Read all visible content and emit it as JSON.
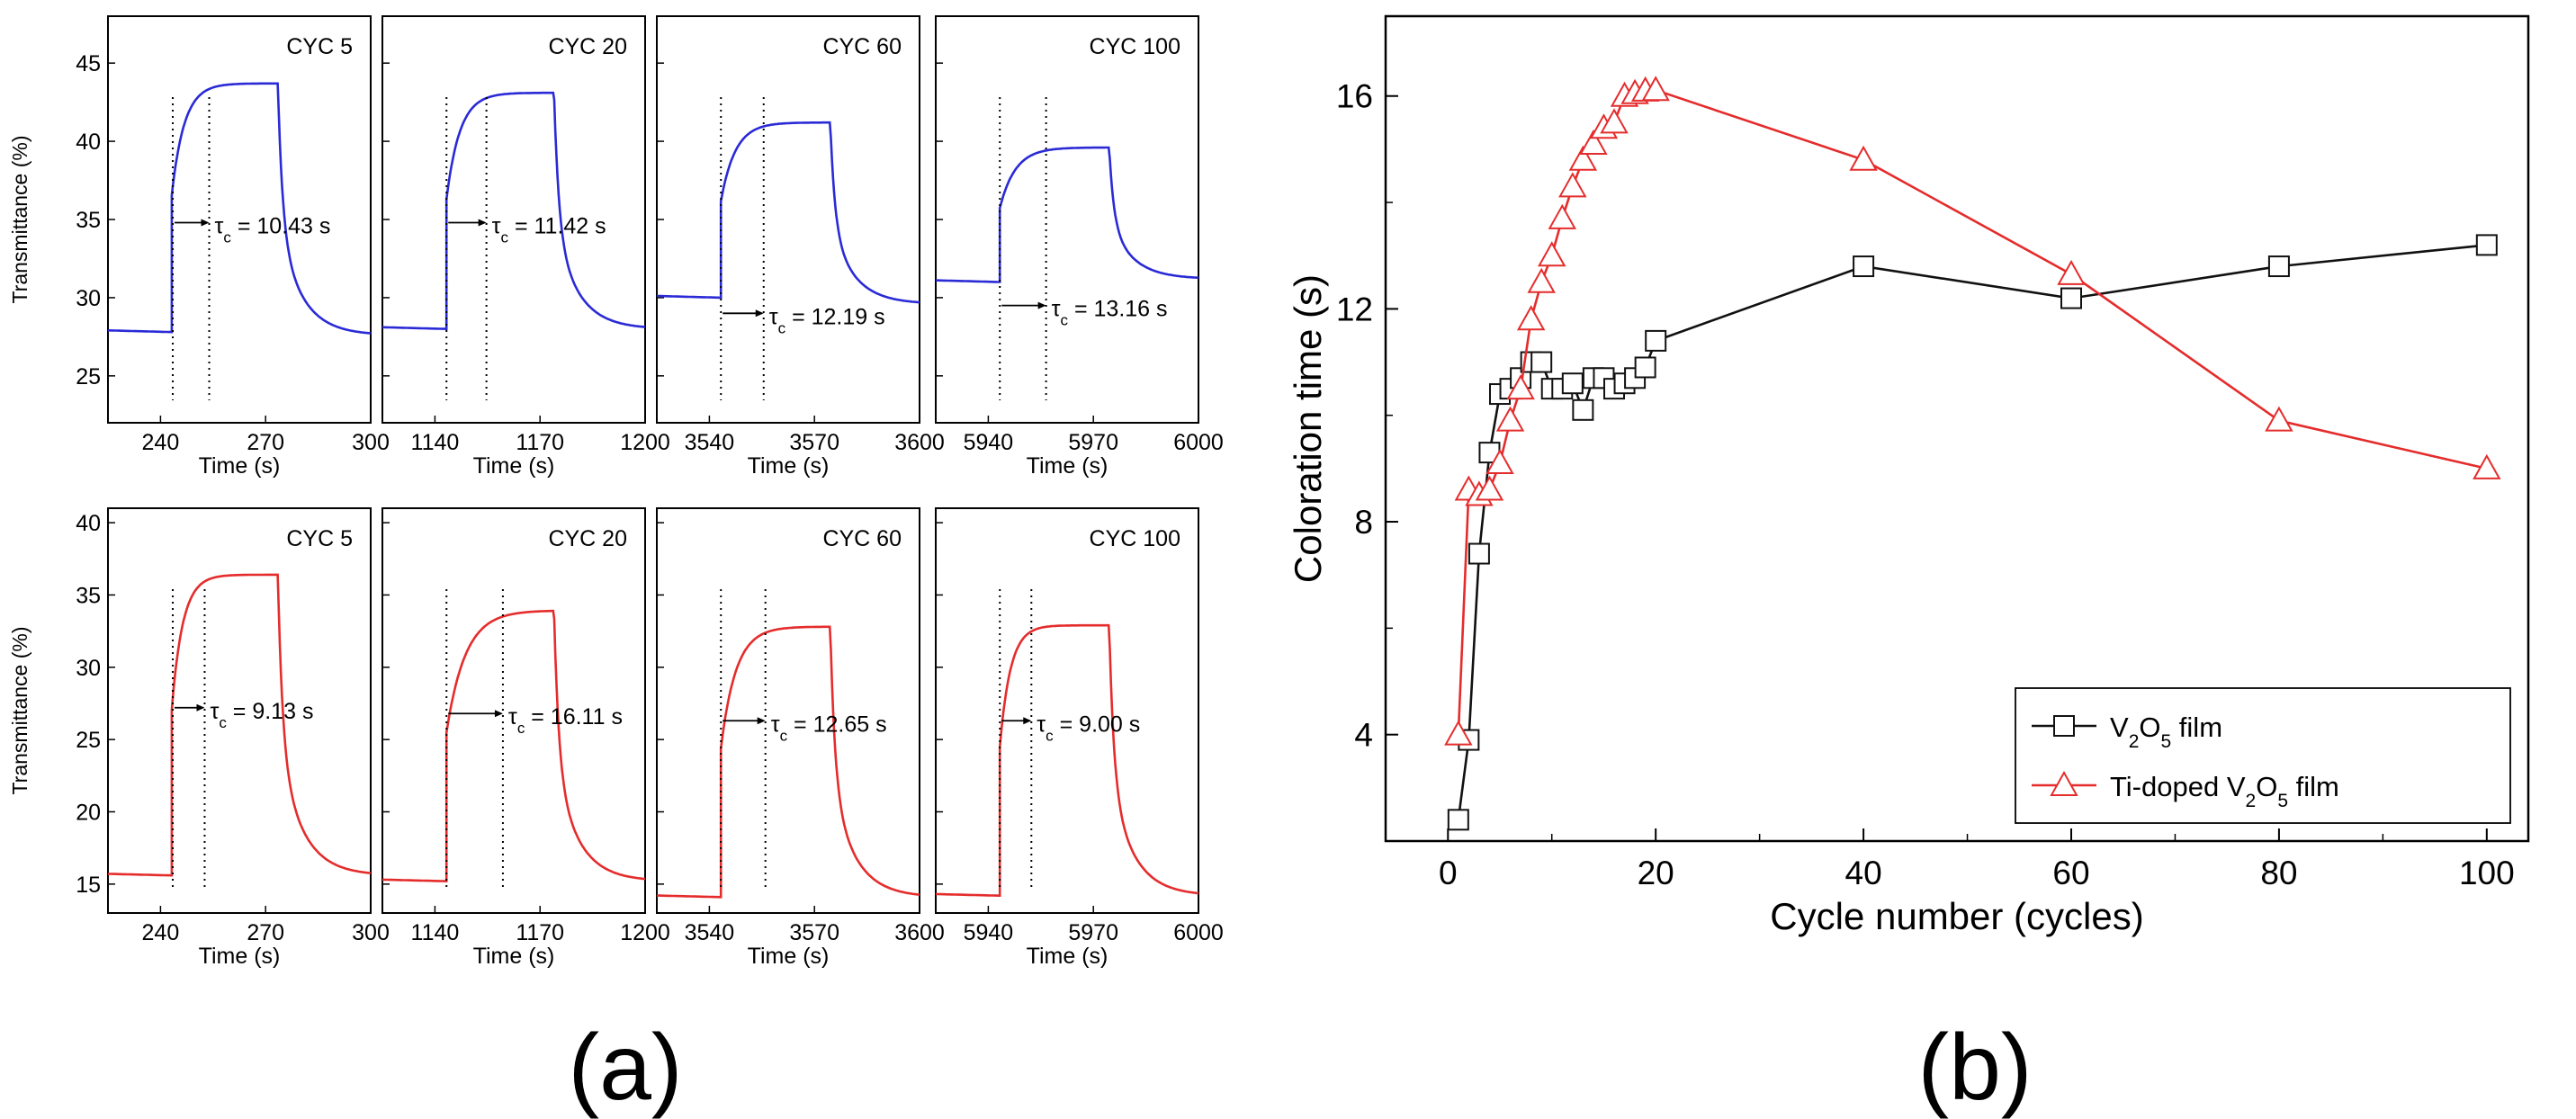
{
  "figure": {
    "label_a": "(a)",
    "label_b": "(b)"
  },
  "chart_data": [
    {
      "type": "line",
      "panel": "a-top",
      "ylabel": "Transmittance (%)",
      "xlabel": "Time (s)",
      "ylim": [
        22,
        48
      ],
      "yticks": [
        25,
        30,
        35,
        40,
        45
      ],
      "color": "#2a2ad6",
      "subplots": [
        {
          "title": "CYC 5",
          "xlim": [
            225,
            300
          ],
          "xticks": [
            240,
            270,
            300
          ],
          "xtick_labels": [
            "240",
            "270",
            "300"
          ],
          "t_on": 243.2,
          "t_off": 273.5,
          "base": 27.8,
          "peak": 43.7,
          "end": 27.6,
          "dash1": 243.5,
          "dash2": 253.9,
          "annotation": "τc = 10.43 s",
          "tau_label": "τ",
          "tau_sub": "c",
          "tau_value": " = 10.43 s",
          "ann_y": 34.8
        },
        {
          "title": "CYC 20",
          "xlim": [
            1125,
            1200
          ],
          "xticks": [
            1140,
            1170,
            1200
          ],
          "xtick_labels": [
            "1140",
            "1170",
            "1200"
          ],
          "t_on": 1143.3,
          "t_off": 1174.0,
          "base": 28.0,
          "peak": 43.1,
          "end": 28.0,
          "dash1": 1143.3,
          "dash2": 1154.7,
          "annotation": "τc = 11.42 s",
          "tau_label": "τ",
          "tau_sub": "c",
          "tau_value": " = 11.42 s",
          "ann_y": 34.8
        },
        {
          "title": "CYC 60",
          "xlim": [
            3525,
            3600
          ],
          "xticks": [
            3540,
            3570,
            3600
          ],
          "xtick_labels": [
            "3540",
            "3570",
            "3600"
          ],
          "t_on": 3543.3,
          "t_off": 3574.5,
          "base": 30.0,
          "peak": 41.2,
          "end": 29.6,
          "dash1": 3543.3,
          "dash2": 3555.5,
          "annotation": "τc = 12.19 s",
          "tau_label": "τ",
          "tau_sub": "c",
          "tau_value": " = 12.19 s",
          "ann_y": 29.0
        },
        {
          "title": "CYC 100",
          "xlim": [
            5925,
            6000
          ],
          "xticks": [
            5940,
            5970,
            6000
          ],
          "xtick_labels": [
            "5940",
            "5970",
            "6000"
          ],
          "t_on": 5943.3,
          "t_off": 5974.5,
          "base": 31.0,
          "peak": 39.6,
          "end": 31.2,
          "dash1": 5943.3,
          "dash2": 5956.5,
          "annotation": "τc = 13.16 s",
          "tau_label": "τ",
          "tau_sub": "c",
          "tau_value": " = 13.16 s",
          "ann_y": 29.5
        }
      ]
    },
    {
      "type": "line",
      "panel": "a-bottom",
      "ylabel": "Transmittance (%)",
      "xlabel": "Time (s)",
      "ylim": [
        13,
        41
      ],
      "yticks": [
        15,
        20,
        25,
        30,
        35,
        40
      ],
      "color": "#e52c2c",
      "subplots": [
        {
          "title": "CYC 5",
          "xlim": [
            225,
            300
          ],
          "xticks": [
            240,
            270,
            300
          ],
          "xtick_labels": [
            "240",
            "270",
            "300"
          ],
          "t_on": 243.2,
          "t_off": 273.5,
          "base": 15.6,
          "peak": 36.4,
          "end": 15.6,
          "dash1": 243.5,
          "dash2": 252.6,
          "annotation": "τc = 9.13 s",
          "tau_label": "τ",
          "tau_sub": "c",
          "tau_value": " = 9.13 s",
          "ann_y": 27.2
        },
        {
          "title": "CYC 20",
          "xlim": [
            1125,
            1200
          ],
          "xticks": [
            1140,
            1170,
            1200
          ],
          "xtick_labels": [
            "1140",
            "1170",
            "1200"
          ],
          "t_on": 1143.3,
          "t_off": 1174.0,
          "base": 15.2,
          "peak": 33.9,
          "end": 15.2,
          "dash1": 1143.3,
          "dash2": 1159.4,
          "annotation": "τc = 16.11 s",
          "tau_label": "τ",
          "tau_sub": "c",
          "tau_value": " = 16.11 s",
          "ann_y": 26.8
        },
        {
          "title": "CYC 60",
          "xlim": [
            3525,
            3600
          ],
          "xticks": [
            3540,
            3570,
            3600
          ],
          "xtick_labels": [
            "3540",
            "3570",
            "3600"
          ],
          "t_on": 3543.3,
          "t_off": 3574.5,
          "base": 14.1,
          "peak": 32.8,
          "end": 14.1,
          "dash1": 3543.3,
          "dash2": 3556.0,
          "annotation": "τc = 12.65 s",
          "tau_label": "τ",
          "tau_sub": "c",
          "tau_value": " = 12.65 s",
          "ann_y": 26.3
        },
        {
          "title": "CYC 100",
          "xlim": [
            5925,
            6000
          ],
          "xticks": [
            5940,
            5970,
            6000
          ],
          "xtick_labels": [
            "5940",
            "5970",
            "6000"
          ],
          "t_on": 5943.3,
          "t_off": 5974.5,
          "base": 14.2,
          "peak": 32.9,
          "end": 14.2,
          "dash1": 5943.3,
          "dash2": 5952.3,
          "annotation": "τc = 9.00 s",
          "tau_label": "τ",
          "tau_sub": "c",
          "tau_value": " = 9.00 s",
          "ann_y": 26.3
        }
      ]
    },
    {
      "type": "line",
      "panel": "b",
      "xlabel": "Cycle number (cycles)",
      "ylabel": "Coloration time (s)",
      "xlim": [
        -6,
        104
      ],
      "ylim": [
        2,
        17.5
      ],
      "xticks": [
        0,
        20,
        40,
        60,
        80,
        100
      ],
      "yticks": [
        4,
        8,
        12,
        16
      ],
      "legend_position": "bottom-right",
      "series": [
        {
          "name": "V2O5 film",
          "legend_parts": [
            "V",
            "2",
            "O",
            "5",
            " film"
          ],
          "color": "#111111",
          "marker": "square",
          "x": [
            1,
            2,
            3,
            4,
            5,
            6,
            7,
            8,
            9,
            10,
            11,
            12,
            13,
            14,
            15,
            16,
            17,
            18,
            19,
            20,
            40,
            60,
            80,
            100
          ],
          "y": [
            2.4,
            3.9,
            7.4,
            9.3,
            10.4,
            10.5,
            10.7,
            11.0,
            11.0,
            10.5,
            10.5,
            10.6,
            10.1,
            10.7,
            10.7,
            10.5,
            10.6,
            10.7,
            10.9,
            11.4,
            12.8,
            12.2,
            12.8,
            13.2
          ]
        },
        {
          "name": "Ti-doped V2O5 film",
          "legend_parts": [
            "Ti-doped V",
            "2",
            "O",
            "5",
            " film"
          ],
          "color": "#e52c2c",
          "marker": "triangle",
          "x": [
            1,
            2,
            3,
            4,
            5,
            6,
            7,
            8,
            9,
            10,
            11,
            12,
            13,
            14,
            15,
            16,
            17,
            18,
            19,
            20,
            40,
            60,
            80,
            100
          ],
          "y": [
            4.0,
            8.6,
            8.5,
            8.6,
            9.1,
            9.9,
            10.5,
            11.8,
            12.5,
            13.0,
            13.7,
            14.3,
            14.8,
            15.1,
            15.4,
            15.5,
            16.0,
            16.05,
            16.1,
            16.11,
            14.8,
            12.65,
            9.9,
            9.0
          ]
        }
      ]
    }
  ]
}
